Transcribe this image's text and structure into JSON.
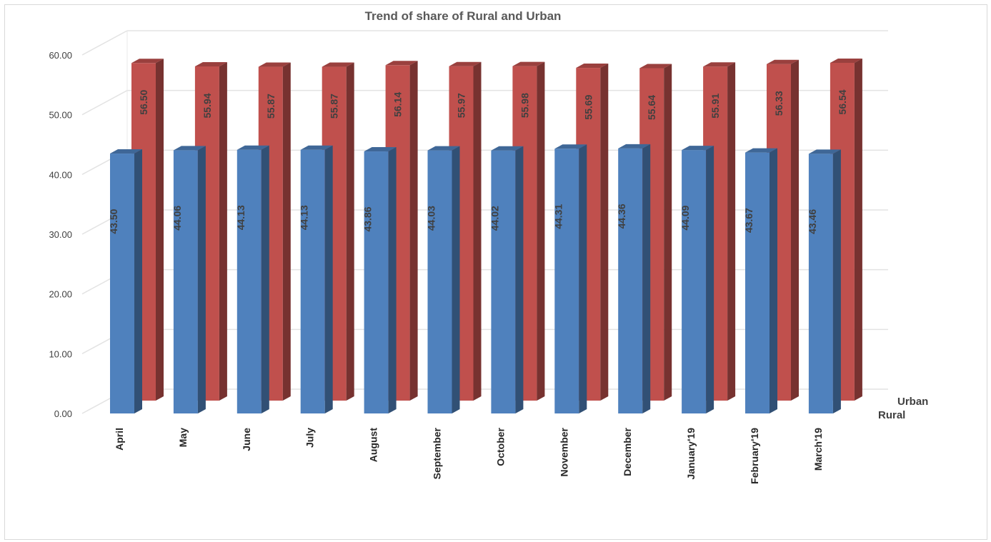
{
  "chart_data": {
    "type": "bar",
    "variant": "3d-column",
    "title": "Trend of  share of Rural and Urban",
    "categories": [
      "April",
      "May",
      "June",
      "July",
      "August",
      "September",
      "October",
      "November",
      "December",
      "January'19",
      "February'19",
      "March'19"
    ],
    "series": [
      {
        "name": "Rural",
        "color": "#4f81bd",
        "values": [
          43.5,
          44.06,
          44.13,
          44.13,
          43.86,
          44.03,
          44.02,
          44.31,
          44.36,
          44.09,
          43.67,
          43.46
        ]
      },
      {
        "name": "Urban",
        "color": "#c0504d",
        "values": [
          56.5,
          55.94,
          55.87,
          55.87,
          56.14,
          55.97,
          55.98,
          55.69,
          55.64,
          55.91,
          56.33,
          56.54
        ]
      }
    ],
    "y_ticks": [
      "0.00",
      "10.00",
      "20.00",
      "30.00",
      "40.00",
      "50.00",
      "60.00"
    ],
    "ylim": [
      0,
      60
    ],
    "grid": true,
    "data_labels": true
  }
}
